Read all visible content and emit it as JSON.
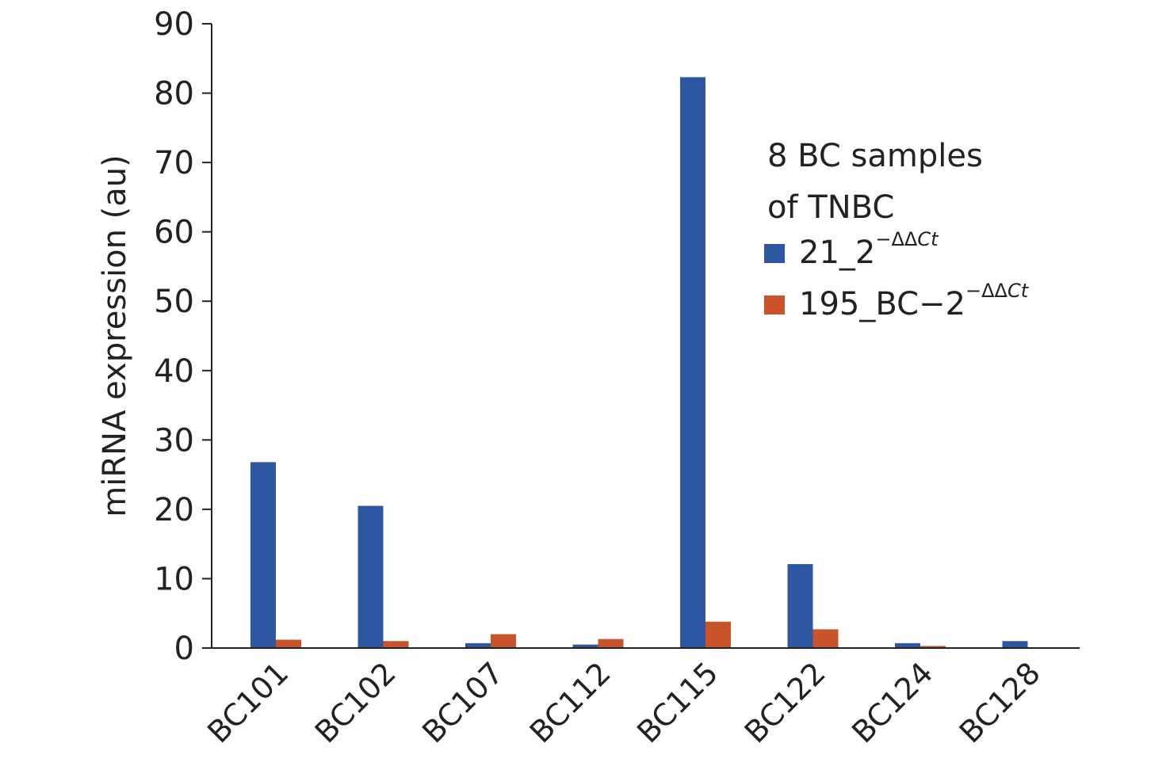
{
  "chart_data": {
    "type": "bar",
    "categories": [
      "BC101",
      "BC102",
      "BC107",
      "BC112",
      "BC115",
      "BC122",
      "BC124",
      "BC128"
    ],
    "series": [
      {
        "name": "21_2",
        "superscript_prefix": "−ΔΔ",
        "superscript_italic": "Ct",
        "color": "#2f56a0",
        "values": [
          26.8,
          20.5,
          0.7,
          0.5,
          82.3,
          12.1,
          0.7,
          1.0
        ]
      },
      {
        "name": "195_BC−2",
        "superscript_prefix": "−ΔΔ",
        "superscript_italic": "Ct",
        "color": "#c9542c",
        "values": [
          1.2,
          1.0,
          2.0,
          1.3,
          3.8,
          2.7,
          0.3,
          0.0
        ]
      }
    ],
    "ylabel": "miRNA expression (au)",
    "xlabel": "",
    "ylim": [
      0,
      90
    ],
    "yticks": [
      0,
      10,
      20,
      30,
      40,
      50,
      60,
      70,
      80,
      90
    ],
    "grid": false,
    "legend": {
      "title_line1": "8 BC samples",
      "title_line2": "of TNBC",
      "placement": "top-right"
    }
  }
}
